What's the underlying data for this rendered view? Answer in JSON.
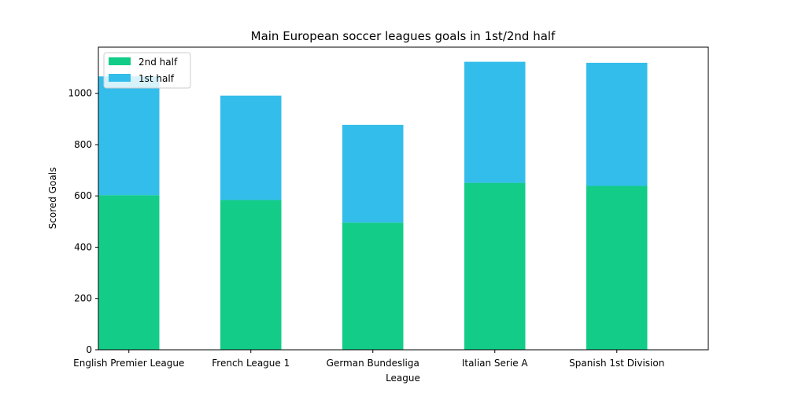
{
  "chart_data": {
    "type": "bar",
    "stacked": true,
    "title": "Main European soccer leagues goals in 1st/2nd half",
    "xlabel": "League",
    "ylabel": "Scored Goals",
    "categories": [
      "English Premier League",
      "French League 1",
      "German Bundesliga",
      "Italian Serie A",
      "Spanish 1st Division"
    ],
    "series": [
      {
        "name": "2nd half",
        "color": "#12cc88",
        "values": [
          603,
          584,
          496,
          651,
          639
        ]
      },
      {
        "name": "1st half",
        "color": "#33bdeb",
        "values": [
          463,
          407,
          381,
          472,
          480
        ]
      }
    ],
    "ylim": [
      0,
      1180
    ],
    "yticks": [
      0,
      200,
      400,
      600,
      800,
      1000
    ],
    "legend_position": "top-left",
    "grid": false
  }
}
